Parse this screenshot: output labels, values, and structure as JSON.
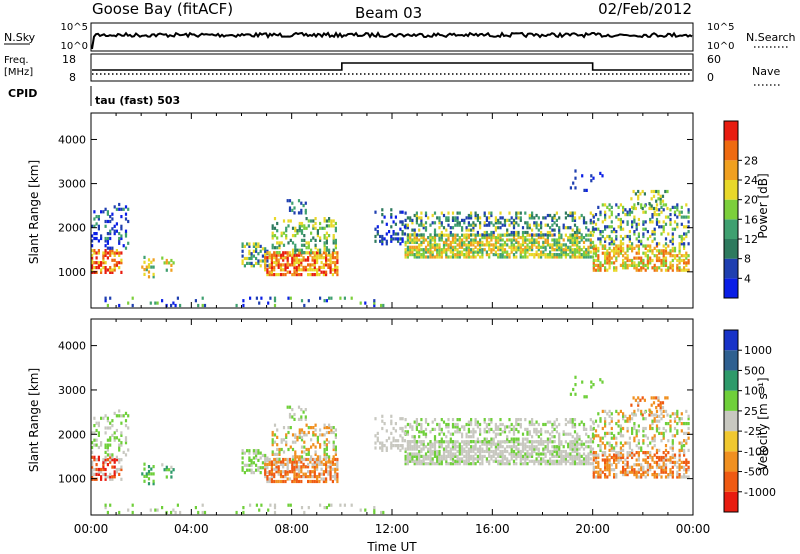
{
  "header": {
    "title": "Goose Bay (fitACF)",
    "beam": "Beam 03",
    "date": "02/Feb/2012"
  },
  "top_panels": {
    "nsky": {
      "label": "N.Sky",
      "right_label": "N.Search",
      "ticks_left": [
        "10^5",
        "10^0"
      ],
      "ticks_right": [
        "10^5",
        "10^0"
      ]
    },
    "freq": {
      "label_line1": "Freq.",
      "label_line2": "[MHz]",
      "right_label": "Nave",
      "ticks_left": [
        "18",
        "8"
      ],
      "ticks_right": [
        "60",
        "0"
      ]
    },
    "cpid": {
      "label": "CPID",
      "mode": "tau (fast) 503"
    }
  },
  "colors": {
    "power": [
      "#0a1ee6",
      "#1f3fb0",
      "#2e7a5e",
      "#3fa070",
      "#7ccf3c",
      "#e8d82a",
      "#f0a020",
      "#ef6a10",
      "#e81c10"
    ],
    "velocity": [
      "#1833c8",
      "#2f6090",
      "#2e9a6a",
      "#6fcf3a",
      "#c8c8c0",
      "#f0c830",
      "#f09020",
      "#ef5a12",
      "#e81c10"
    ]
  },
  "chart_data": [
    {
      "type": "heatmap",
      "name": "power",
      "ylabel": "Slant Range [km]",
      "yticks": [
        "1000",
        "2000",
        "3000",
        "4000"
      ],
      "y_values": [
        1000,
        2000,
        3000,
        4000
      ],
      "ylim": [
        180,
        4600
      ],
      "xlim": [
        0,
        24
      ],
      "colorbar": {
        "label": "Power [dB]",
        "ticks": [
          "4",
          "8",
          "12",
          "16",
          "20",
          "24",
          "28"
        ],
        "range": [
          0,
          32
        ]
      }
    },
    {
      "type": "heatmap",
      "name": "velocity",
      "ylabel": "Slant Range [km]",
      "yticks": [
        "1000",
        "2000",
        "3000",
        "4000"
      ],
      "y_values": [
        1000,
        2000,
        3000,
        4000
      ],
      "ylim": [
        180,
        4600
      ],
      "xlim": [
        0,
        24
      ],
      "xlabel": "Time UT",
      "xticks": [
        "00:00",
        "04:00",
        "08:00",
        "12:00",
        "16:00",
        "20:00",
        "00:00"
      ],
      "x_values": [
        0,
        4,
        8,
        12,
        16,
        20,
        24
      ],
      "colorbar": {
        "label": "Velocity [m s⁻¹]",
        "ticks": [
          "1000",
          "500",
          "100",
          "25",
          "-25",
          "-100",
          "-500",
          "-1000"
        ]
      }
    }
  ]
}
